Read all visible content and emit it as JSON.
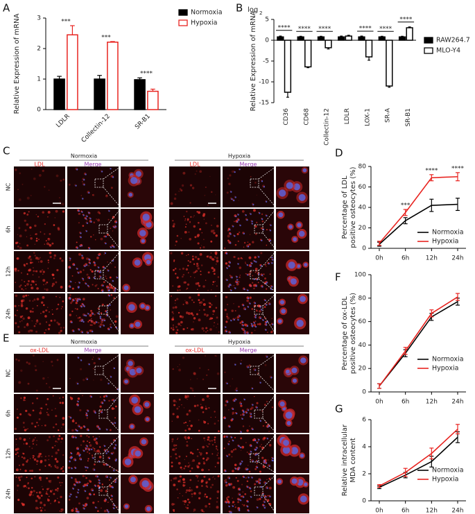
{
  "chart_data": [
    {
      "type": "bar",
      "panel_label": "A",
      "ylabel": "Relative Expression of mRNA",
      "categories": [
        "LDLR",
        "Collectin-12",
        "SR-B1"
      ],
      "series": [
        {
          "name": "Normoxia",
          "color": "#000000",
          "filled": true,
          "values": [
            1.0,
            1.0,
            0.98
          ],
          "errors": [
            0.09,
            0.12,
            0.06
          ]
        },
        {
          "name": "Hypoxia",
          "color": "#e8231f",
          "filled": false,
          "values": [
            2.45,
            2.21,
            0.6
          ],
          "errors": [
            0.3,
            0.02,
            0.07
          ]
        }
      ],
      "annotations": [
        "***",
        "***",
        "****"
      ],
      "annotation_bracket": false,
      "ylim": [
        0,
        3
      ],
      "yticks": [
        0,
        1,
        2,
        3
      ],
      "legend": "outside-right"
    },
    {
      "type": "bar",
      "panel_label": "B",
      "ylabel": "Relative Expression of mRNA",
      "y_unit": {
        "text": "log",
        "subscript": "2"
      },
      "categories": [
        "CD36",
        "CD68",
        "Collectin-12",
        "LDLR",
        "LOX-1",
        "SR-A",
        "SR-B1"
      ],
      "series": [
        {
          "name": "RAW264.7",
          "color": "#000000",
          "filled": true,
          "values": [
            0.8,
            0.8,
            0.8,
            0.8,
            0.8,
            0.8,
            0.8
          ],
          "errors": [
            0.2,
            0.15,
            0.15,
            0.2,
            0.2,
            0.15,
            0.15
          ]
        },
        {
          "name": "MLO-Y4",
          "color": "#000000",
          "filled": false,
          "values": [
            -12.5,
            -6.4,
            -1.8,
            1.0,
            -4.0,
            -11.0,
            3.0
          ],
          "errors": [
            1.2,
            0.2,
            0.3,
            0.2,
            0.8,
            0.3,
            0.2
          ]
        }
      ],
      "annotations": [
        "****",
        "****",
        "****",
        null,
        "****",
        "****",
        "****"
      ],
      "annotation_bracket": true,
      "ylim": [
        -15,
        5
      ],
      "yticks": [
        -15,
        -10,
        -5,
        0,
        5
      ],
      "legend": "outside-right"
    },
    {
      "type": "line",
      "panel_label": "D",
      "ylabel": [
        "Percentage of LDL",
        "positive osteocytes (%)"
      ],
      "categories": [
        "0h",
        "6h",
        "12h",
        "24h"
      ],
      "series": [
        {
          "name": "Normoxia",
          "color": "#000000",
          "values": [
            4,
            27,
            42,
            43
          ],
          "errors": [
            2,
            3,
            6,
            6
          ]
        },
        {
          "name": "Hypoxia",
          "color": "#e8231f",
          "values": [
            5,
            35,
            69,
            70
          ],
          "errors": [
            2,
            3,
            3,
            4
          ]
        }
      ],
      "annotations": [
        null,
        "***",
        "****",
        "****"
      ],
      "ylim": [
        0,
        80
      ],
      "yticks": [
        0,
        20,
        40,
        60,
        80
      ],
      "legend": "lower-right"
    },
    {
      "type": "line",
      "panel_label": "F",
      "ylabel": [
        "Percentage of ox-LDL",
        "positive osteocytes (%)"
      ],
      "categories": [
        "0h",
        "6h",
        "12h",
        "24h"
      ],
      "series": [
        {
          "name": "Normoxia",
          "color": "#000000",
          "values": [
            5,
            33,
            64,
            77
          ],
          "errors": [
            2,
            3,
            3,
            3
          ]
        },
        {
          "name": "Hypoxia",
          "color": "#e8231f",
          "values": [
            5,
            35,
            67,
            81
          ],
          "errors": [
            2,
            3,
            3,
            3
          ]
        }
      ],
      "ylim": [
        0,
        100
      ],
      "yticks": [
        0,
        20,
        40,
        60,
        80,
        100
      ],
      "legend": "lower-right"
    },
    {
      "type": "line",
      "panel_label": "G",
      "ylabel": [
        "Relative intracellular",
        "MDA content"
      ],
      "categories": [
        "0h",
        "6h",
        "12h",
        "24h"
      ],
      "series": [
        {
          "name": "Normoxia",
          "color": "#000000",
          "values": [
            1.0,
            1.9,
            2.9,
            4.7
          ],
          "errors": [
            0.1,
            0.2,
            0.4,
            0.4
          ]
        },
        {
          "name": "Hypoxia",
          "color": "#e8231f",
          "values": [
            1.1,
            2.1,
            3.5,
            5.3
          ],
          "errors": [
            0.1,
            0.3,
            0.4,
            0.35
          ]
        }
      ],
      "ylim": [
        0,
        6
      ],
      "yticks": [
        0,
        2,
        4,
        6
      ],
      "legend": "lower-right"
    }
  ],
  "image_panels": [
    {
      "panel_label": "C",
      "rows": [
        "NC",
        "6h",
        "12h",
        "24h"
      ],
      "groups": [
        {
          "title": "Normoxia",
          "columns": [
            "LDL",
            "Merge"
          ]
        },
        {
          "title": "Hypoxia",
          "columns": [
            "LDL",
            "Merge"
          ]
        }
      ]
    },
    {
      "panel_label": "E",
      "rows": [
        "NC",
        "6h",
        "12h",
        "24h"
      ],
      "groups": [
        {
          "title": "Normoxia",
          "columns": [
            "ox-LDL",
            "Merge"
          ]
        },
        {
          "title": "Hypoxia",
          "columns": [
            "ox-LDL",
            "Merge"
          ]
        }
      ]
    }
  ]
}
